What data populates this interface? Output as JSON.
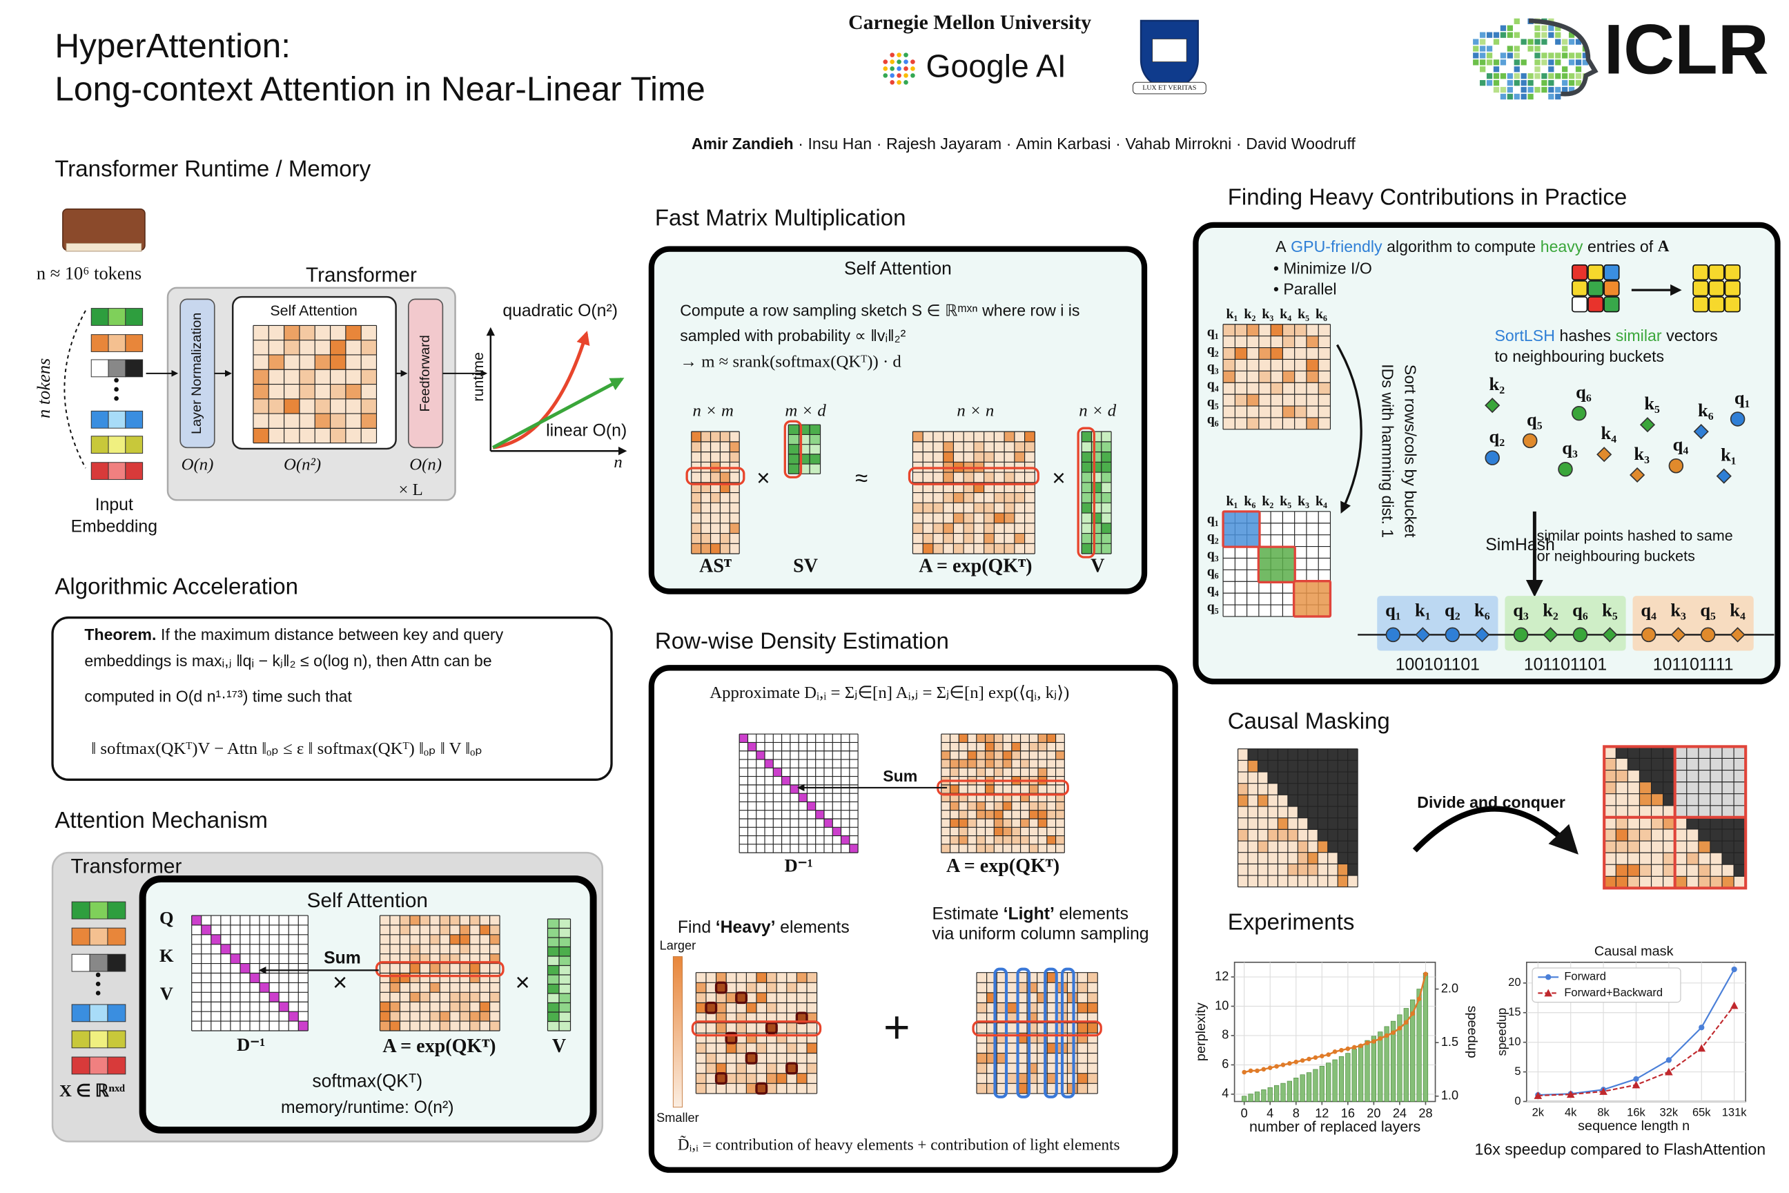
{
  "header": {
    "title": [
      "HyperAttention:",
      "Long-context Attention in Near-Linear Time"
    ],
    "affiliations": [
      "Carnegie Mellon University",
      "Google AI",
      "LUX ET VERITAS"
    ],
    "conference": "ICLR",
    "authors": [
      "Amir Zandieh",
      "Insu Han",
      "Rajesh Jayaram",
      "Amin Karbasi",
      "Vahab Mirrokni",
      "David Woodruff"
    ],
    "separator": "·"
  },
  "runtime": {
    "heading": "Transformer Runtime / Memory",
    "tokens": "n ≈ 10⁶ tokens",
    "transformer": "Transformer",
    "self_attention": "Self Attention",
    "layer_norm": "Layer Normalization",
    "feedforward": "Feedforward",
    "cost_norm": "O(n)",
    "cost_attn": "O(n²)",
    "cost_ff": "O(n)",
    "repeat": "× L",
    "n_tokens": "n tokens",
    "input": [
      "Input",
      "Embedding"
    ],
    "quadratic": "quadratic O(n²)",
    "linear": "linear O(n)",
    "y_axis": "runtime",
    "x_axis": "n"
  },
  "acceleration": {
    "heading": "Algorithmic Acceleration",
    "label": "Theorem.",
    "lines": [
      "If the maximum distance between key and query",
      "embeddings is maxᵢ,ⱼ ‖qᵢ − kⱼ‖₂ ≤ o(log n), then Attn can be",
      "computed in O(d n¹·¹⁷³) time such that",
      "‖ softmax(QKᵀ)V − Attn ‖ₒₚ ≤ ε ‖ softmax(QKᵀ) ‖ₒₚ ‖ V ‖ₒₚ"
    ]
  },
  "mechanism": {
    "heading": "Attention Mechanism",
    "transformer": "Transformer",
    "self_attention": "Self Attention",
    "qkv": [
      "Q",
      "K",
      "V"
    ],
    "sum": "Sum",
    "times": "×",
    "d_inv": "D⁻¹",
    "a": "A = exp(QKᵀ)",
    "v": "V",
    "softmax": "softmax(QKᵀ)",
    "cost": "memory/runtime: O(n²)",
    "x": "X ∈ ℝⁿˣᵈ"
  },
  "fast_mm": {
    "heading": "Fast Matrix Multiplication",
    "title": "Self Attention",
    "lines": [
      "Compute a row sampling sketch S ∈ ℝᵐˣⁿ where row i is",
      "sampled with probability ∝ ‖vᵢ‖₂²",
      "→ m ≈ srank(softmax(QKᵀ)) · d"
    ],
    "dims": [
      "n × m",
      "m × d",
      "n × n",
      "n × d"
    ],
    "ops": [
      "×",
      "≈",
      "×"
    ],
    "labels": [
      "ASᵀ",
      "SV",
      "A = exp(QKᵀ)",
      "V"
    ]
  },
  "density": {
    "heading": "Row-wise Density Estimation",
    "formula": "Approximate Dᵢ,ᵢ = Σⱼ∈[n] Aᵢ,ⱼ = Σⱼ∈[n] exp(⟨qᵢ, kⱼ⟩)",
    "sum": "Sum",
    "d_inv": "D⁻¹",
    "a": "A = exp(QKᵀ)",
    "heavy": [
      "Find",
      "‘Heavy’",
      "elements"
    ],
    "light": [
      "Estimate",
      "‘Light’",
      "elements"
    ],
    "light_2": "via uniform column sampling",
    "larger": "Larger",
    "smaller": "Smaller",
    "plus": "+",
    "summary": "D̃ᵢ,ᵢ = contribution of heavy elements + contribution of light elements"
  },
  "heavy": {
    "heading": "Finding Heavy Contributions in Practice",
    "intro": [
      "A",
      "GPU-friendly",
      "algorithm to compute",
      "heavy",
      "entries of",
      "A"
    ],
    "bullets": [
      "• Minimize I/O",
      "• Parallel"
    ],
    "sortlsh": [
      "SortLSH",
      "hashes",
      "similar",
      "vectors"
    ],
    "sortlsh_2": "to neighbouring buckets",
    "sort_note": [
      "Sort rows/cols by bucket",
      "IDs with hamming dist. 1"
    ],
    "keys": [
      "k₁",
      "k₂",
      "k₃",
      "k₄",
      "k₅",
      "k₆"
    ],
    "queries": [
      "q₁",
      "q₂",
      "q₃",
      "q₄",
      "q₅",
      "q₆"
    ],
    "sorted_keys": [
      "k₁",
      "k₆",
      "k₂",
      "k₅",
      "k₃",
      "k₄"
    ],
    "sorted_queries": [
      "q₁",
      "q₂",
      "q₃",
      "q₆",
      "q₄",
      "q₅"
    ],
    "points": [
      "k₂",
      "q₆",
      "k₅",
      "k₆",
      "q₁",
      "q₅",
      "q₂",
      "q₃",
      "k₄",
      "q₄",
      "k₃",
      "k₁"
    ],
    "simhash": "SimHash",
    "simhash_note": [
      "similar points hashed to same",
      "or neighbouring buckets"
    ],
    "buckets": [
      {
        "items": [
          "q₁",
          "k₁",
          "q₂",
          "k₆"
        ],
        "code": "100101101"
      },
      {
        "items": [
          "q₃",
          "k₂",
          "q₆",
          "k₅"
        ],
        "code": "101101101"
      },
      {
        "items": [
          "q₄",
          "k₃",
          "q₅",
          "k₄"
        ],
        "code": "101101111"
      }
    ]
  },
  "causal": {
    "heading": "Causal Masking",
    "note": "Divide and conquer"
  },
  "experiments": {
    "heading": "Experiments",
    "caption": "16x speedup compared to FlashAttention"
  },
  "chart_data": [
    {
      "type": "combo",
      "xlabel": "number of replaced layers",
      "ylabel": "perplexity",
      "y2label": "speedup",
      "x": [
        0,
        1,
        2,
        3,
        4,
        5,
        6,
        7,
        8,
        9,
        10,
        11,
        12,
        13,
        14,
        15,
        16,
        17,
        18,
        19,
        20,
        21,
        22,
        23,
        24,
        25,
        26,
        27,
        28
      ],
      "series": [
        {
          "type": "line",
          "color": "#e07b28",
          "values": [
            5.5,
            5.6,
            5.6,
            5.7,
            5.8,
            5.9,
            6.0,
            6.1,
            6.2,
            6.3,
            6.4,
            6.5,
            6.6,
            6.7,
            6.9,
            7.0,
            7.1,
            7.2,
            7.3,
            7.5,
            7.6,
            7.8,
            8.0,
            8.2,
            8.5,
            8.9,
            9.5,
            10.5,
            12.2
          ]
        },
        {
          "type": "bar",
          "axis": "y2",
          "color": "#86bf78",
          "values": [
            1.0,
            1.02,
            1.04,
            1.06,
            1.08,
            1.1,
            1.12,
            1.14,
            1.17,
            1.2,
            1.22,
            1.25,
            1.28,
            1.31,
            1.34,
            1.37,
            1.4,
            1.44,
            1.48,
            1.52,
            1.56,
            1.6,
            1.65,
            1.7,
            1.76,
            1.82,
            1.9,
            2.0,
            2.15
          ]
        }
      ],
      "xlim": [
        -1.5,
        29.5
      ],
      "xticks": [
        0,
        4,
        8,
        12,
        16,
        20,
        24,
        28
      ],
      "ylim": [
        3.5,
        13
      ],
      "yticks": [
        4,
        6,
        8,
        10,
        12
      ],
      "y2lim": [
        0.95,
        2.25
      ],
      "y2ticks": [
        {
          "value": 1,
          "label": "1.0"
        },
        {
          "value": 1.5,
          "label": "1.5"
        },
        {
          "value": 2,
          "label": "2.0"
        }
      ],
      "grid": true
    },
    {
      "type": "line",
      "title": "Causal mask",
      "xlabel": "sequence length n",
      "ylabel": "speedup",
      "categories": [
        "2k",
        "4k",
        "8k",
        "16k",
        "32k",
        "65k",
        "131k"
      ],
      "series": [
        {
          "name": "Forward",
          "color": "#4a7fd8",
          "marker": "circle",
          "values": [
            1.1,
            1.3,
            2.0,
            3.8,
            7.0,
            12.5,
            22.3
          ]
        },
        {
          "name": "Forward+Backward",
          "color": "#c0282d",
          "marker": "triangle",
          "dash": true,
          "values": [
            1.0,
            1.2,
            1.7,
            2.8,
            5.0,
            9.0,
            16.2
          ]
        }
      ],
      "ylim": [
        0,
        23.5
      ],
      "yticks": [
        0,
        5,
        10,
        15,
        20
      ],
      "legend": "upper-left",
      "grid": true
    }
  ]
}
